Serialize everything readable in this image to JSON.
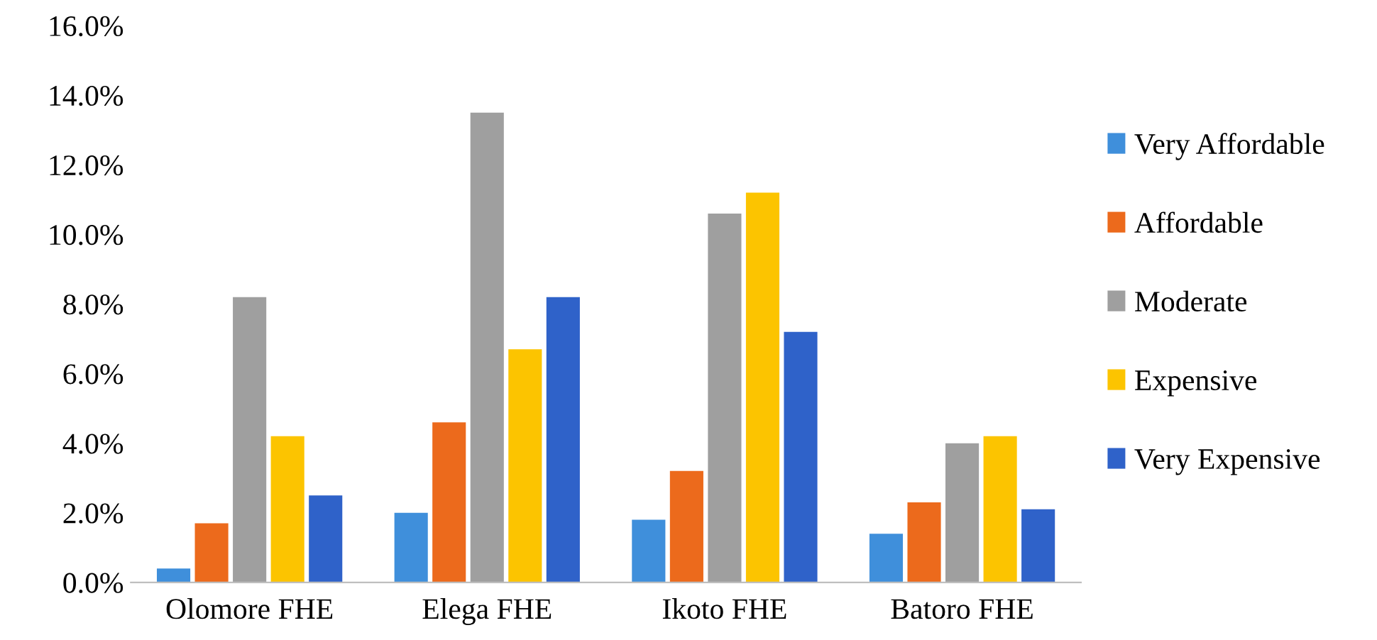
{
  "chart_data": {
    "type": "bar",
    "categories": [
      "Olomore FHE",
      "Elega FHE",
      "Ikoto FHE",
      "Batoro FHE"
    ],
    "series": [
      {
        "name": "Very Affordable",
        "color": "#3f8fdb",
        "values": [
          0.4,
          2.0,
          1.8,
          1.4
        ]
      },
      {
        "name": "Affordable",
        "color": "#ec6a1c",
        "values": [
          1.7,
          4.6,
          3.2,
          2.3
        ]
      },
      {
        "name": "Moderate",
        "color": "#9f9f9f",
        "values": [
          8.2,
          13.5,
          10.6,
          4.0
        ]
      },
      {
        "name": "Expensive",
        "color": "#fcc400",
        "values": [
          4.2,
          6.7,
          11.2,
          4.2
        ]
      },
      {
        "name": "Very Expensive",
        "color": "#2f62c9",
        "values": [
          2.5,
          8.2,
          7.2,
          2.1
        ]
      }
    ],
    "ylim": [
      0,
      16
    ],
    "yticks": [
      {
        "value": 0,
        "label": "0.0%"
      },
      {
        "value": 2,
        "label": "2.0%"
      },
      {
        "value": 4,
        "label": "4.0%"
      },
      {
        "value": 6,
        "label": "6.0%"
      },
      {
        "value": 8,
        "label": "8.0%"
      },
      {
        "value": 10,
        "label": "10.0%"
      },
      {
        "value": 12,
        "label": "12.0%"
      },
      {
        "value": 14,
        "label": "14.0%"
      },
      {
        "value": 16,
        "label": "16.0%"
      }
    ],
    "grid": false,
    "legend": "right"
  }
}
